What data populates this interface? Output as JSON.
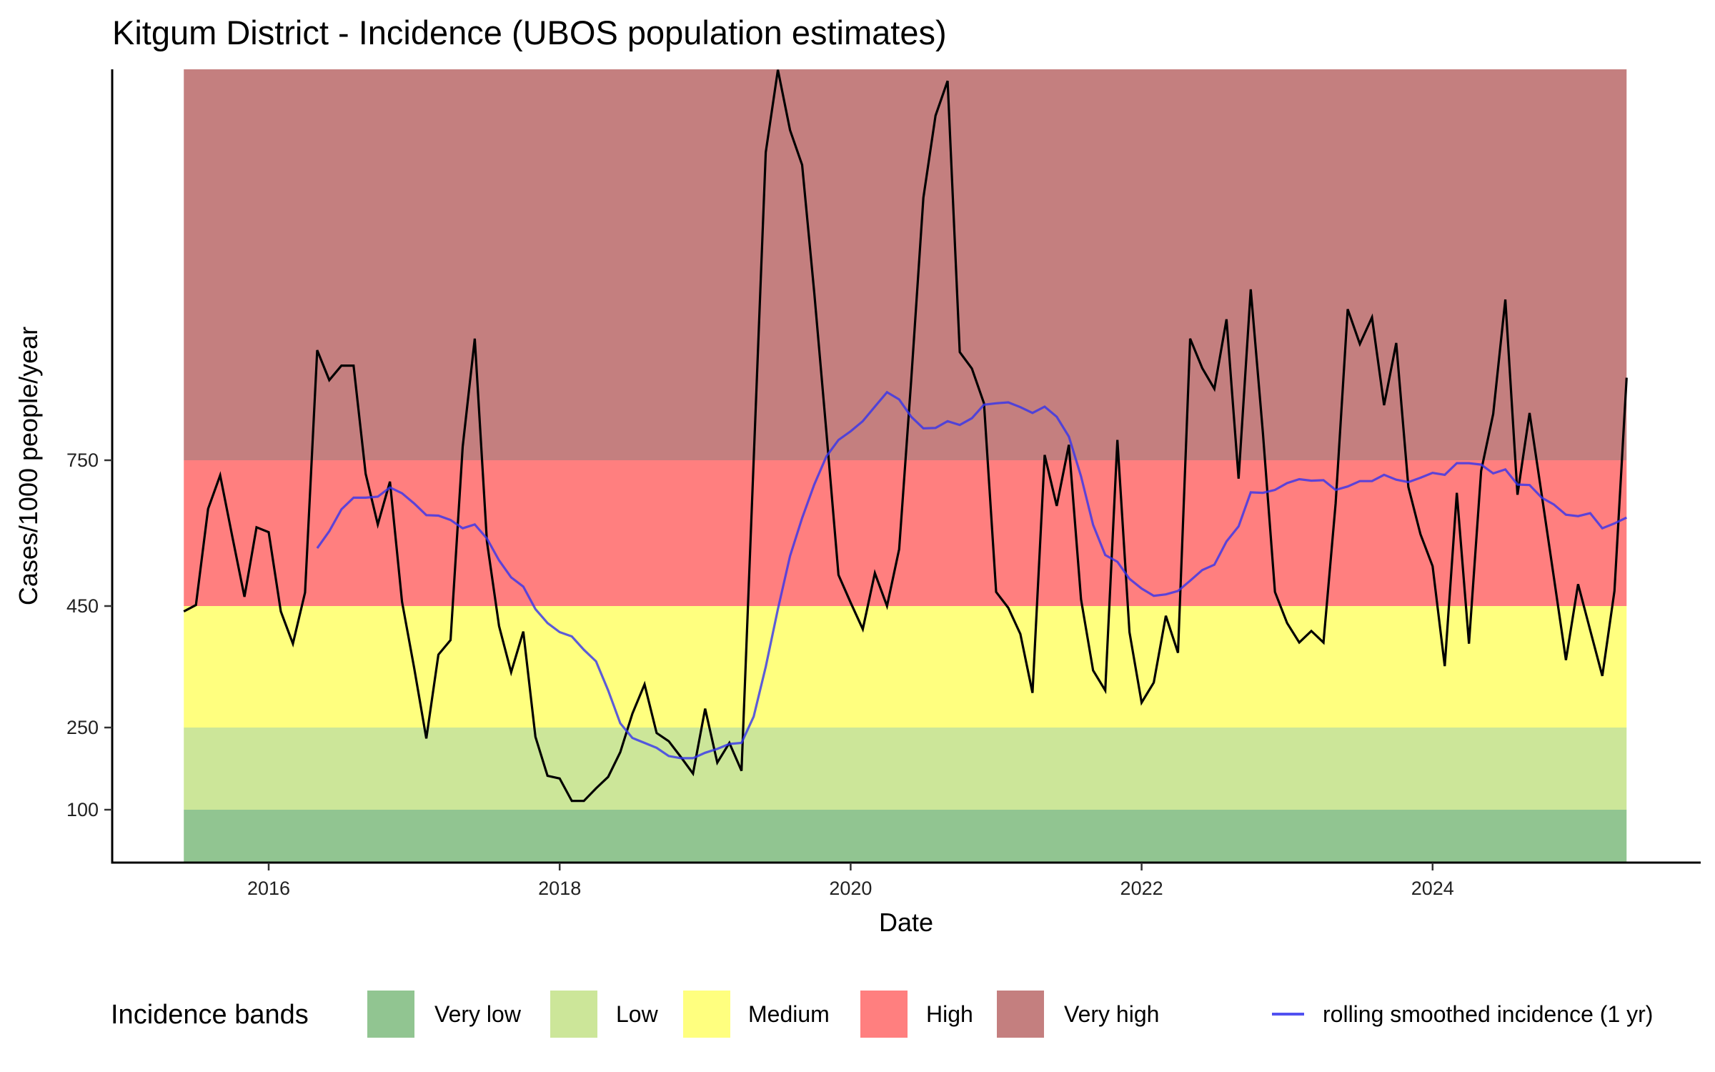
{
  "chart_data": {
    "type": "line",
    "title": "Kitgum District - Incidence (UBOS population estimates)",
    "xlabel": "Date",
    "ylabel": "Cases/1000 people/year",
    "x_start": "2015-06",
    "x_end": "2025-05",
    "x_interval": "monthly",
    "x_ticks": [
      2016,
      2018,
      2020,
      2022,
      2024
    ],
    "y_ticks": [
      100,
      250,
      450,
      750
    ],
    "ylim": [
      0,
      1560
    ],
    "y_scale": "non-linear (tick spacing uneven)",
    "grid": false,
    "legend_position": "bottom",
    "bands": [
      {
        "name": "Very low",
        "from": 0,
        "to": 100,
        "color": "#91C591"
      },
      {
        "name": "Low",
        "from": 100,
        "to": 250,
        "color": "#CCE699"
      },
      {
        "name": "Medium",
        "from": 250,
        "to": 450,
        "color": "#FFFF7F"
      },
      {
        "name": "High",
        "from": 450,
        "to": 750,
        "color": "#FF7F7F"
      },
      {
        "name": "Very high",
        "from": 750,
        "to": 1560,
        "color": "#C47F7F"
      }
    ],
    "series": [
      {
        "name": "incidence",
        "color": "#000000",
        "values": [
          441,
          452,
          650,
          719,
          593,
          469,
          612,
          602,
          441,
          388,
          478,
          978,
          916,
          946,
          946,
          722,
          618,
          706,
          459,
          348,
          230,
          370,
          394,
          778,
          1002,
          583,
          417,
          341,
          408,
          233,
          162,
          157,
          116,
          116,
          139,
          160,
          205,
          273,
          321,
          240,
          225,
          196,
          166,
          281,
          186,
          222,
          171,
          750,
          1388,
          1559,
          1434,
          1362,
          1097,
          808,
          514,
          457,
          412,
          518,
          450,
          567,
          917,
          1294,
          1464,
          1536,
          974,
          940,
          868,
          479,
          447,
          404,
          307,
          761,
          656,
          782,
          464,
          344,
          311,
          792,
          407,
          291,
          324,
          434,
          373,
          1002,
          941,
          898,
          1042,
          712,
          1104,
          807,
          479,
          422,
          390,
          409,
          390,
          661,
          1063,
          991,
          1046,
          864,
          993,
          695,
          598,
          532,
          351,
          683,
          388,
          728,
          846,
          1083,
          679,
          848,
          679,
          509,
          361,
          495,
          410,
          335,
          481,
          921
        ]
      },
      {
        "name": "rolling smoothed incidence (1 yr)",
        "color": "#3333EE",
        "values": [
          null,
          null,
          null,
          null,
          null,
          null,
          null,
          null,
          null,
          null,
          null,
          569,
          604,
          649,
          673,
          673,
          675,
          694,
          682,
          661,
          637,
          636,
          627,
          610,
          618,
          589,
          544,
          509,
          490,
          445,
          422,
          407,
          400,
          378,
          359,
          311,
          257,
          231,
          222,
          213,
          198,
          194,
          194,
          204,
          211,
          220,
          222,
          268,
          350,
          445,
          553,
          631,
          700,
          758,
          792,
          810,
          831,
          861,
          891,
          876,
          840,
          816,
          817,
          831,
          823,
          837,
          865,
          868,
          870,
          860,
          848,
          861,
          840,
          799,
          717,
          617,
          555,
          541,
          506,
          486,
          471,
          474,
          481,
          502,
          524,
          535,
          583,
          614,
          684,
          683,
          689,
          703,
          711,
          708,
          709,
          689,
          696,
          707,
          707,
          720,
          710,
          705,
          714,
          724,
          720,
          744,
          744,
          741,
          723,
          731,
          700,
          699,
          673,
          659,
          638,
          635,
          641,
          610,
          620,
          632
        ]
      }
    ]
  },
  "legend": {
    "title": "Incidence bands",
    "items": [
      "Very low",
      "Low",
      "Medium",
      "High",
      "Very high"
    ],
    "line_label": "rolling smoothed incidence (1 yr)"
  }
}
